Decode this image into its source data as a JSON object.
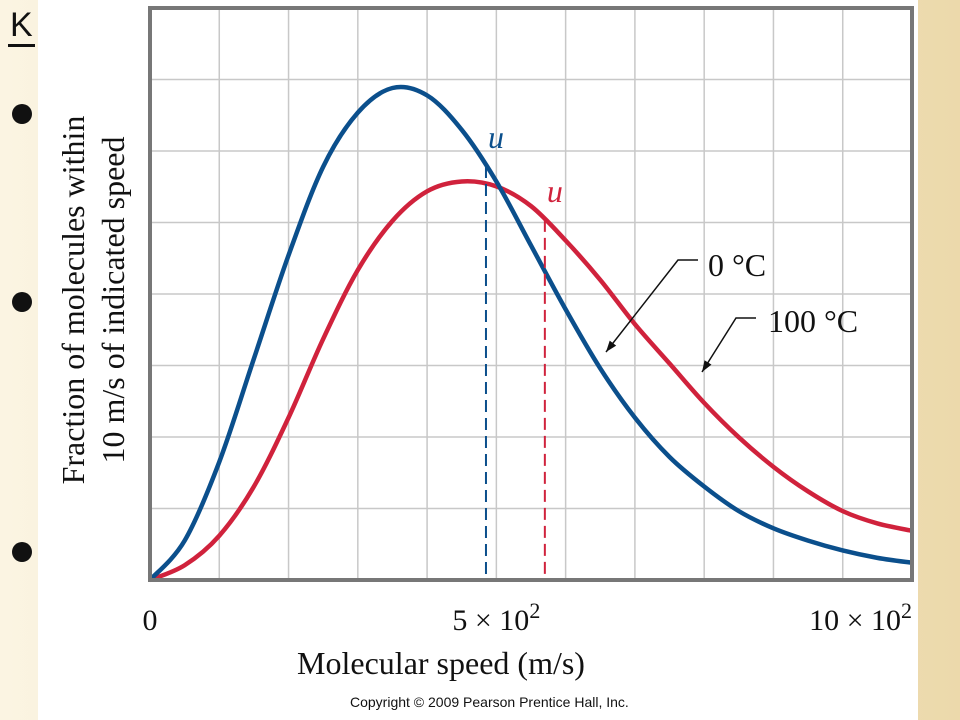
{
  "slide": {
    "heading": "K",
    "bullet_count": 3,
    "copyright": "Copyright © 2009 Pearson Prentice Hall, Inc."
  },
  "chart_data": {
    "type": "line",
    "xlabel": "Molecular speed (m/s)",
    "ylabel_line1": "Fraction of molecules within",
    "ylabel_line2": "10 m/s of indicated speed",
    "xlim": [
      0,
      1100
    ],
    "ylim": [
      0,
      1.0
    ],
    "grid": true,
    "x_ticks": [
      {
        "value": 0,
        "label": "0"
      },
      {
        "value": 500,
        "label": "5 × 10",
        "sup": "2"
      },
      {
        "value": 1000,
        "label": "10 × 10",
        "sup": "2"
      }
    ],
    "series": [
      {
        "name": "0 °C",
        "color": "#0b4f8c",
        "mark": "u",
        "mark_value": 485,
        "x": [
          0,
          50,
          100,
          150,
          200,
          250,
          300,
          350,
          400,
          450,
          500,
          550,
          600,
          650,
          700,
          750,
          800,
          850,
          900,
          950,
          1000,
          1050,
          1100
        ],
        "values": [
          0.0,
          0.08,
          0.24,
          0.45,
          0.66,
          0.84,
          0.95,
          1.0,
          0.985,
          0.915,
          0.81,
          0.68,
          0.55,
          0.43,
          0.33,
          0.25,
          0.19,
          0.14,
          0.105,
          0.08,
          0.06,
          0.045,
          0.035
        ]
      },
      {
        "name": "100 °C",
        "color": "#d0223c",
        "mark": "u",
        "mark_value": 570,
        "x": [
          0,
          50,
          100,
          150,
          200,
          250,
          300,
          350,
          400,
          450,
          500,
          550,
          600,
          650,
          700,
          750,
          800,
          850,
          900,
          950,
          1000,
          1050,
          1100
        ],
        "values": [
          0.0,
          0.03,
          0.09,
          0.19,
          0.33,
          0.49,
          0.63,
          0.73,
          0.79,
          0.81,
          0.8,
          0.76,
          0.69,
          0.61,
          0.52,
          0.44,
          0.36,
          0.29,
          0.23,
          0.18,
          0.14,
          0.115,
          0.1
        ]
      }
    ]
  }
}
